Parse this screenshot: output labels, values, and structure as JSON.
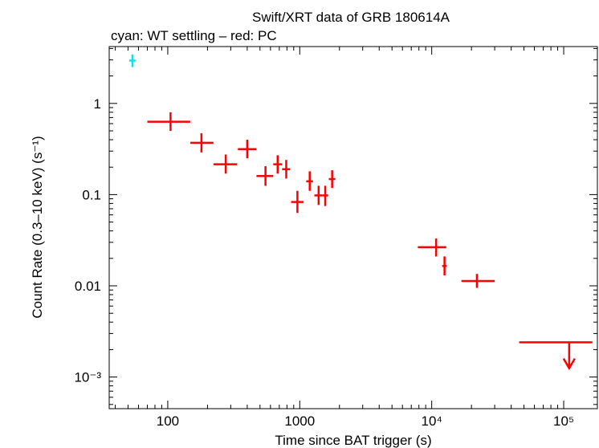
{
  "chart_data": {
    "type": "scatter",
    "title": "Swift/XRT data of GRB 180614A",
    "subtitle": "cyan: WT settling – red: PC",
    "xlabel": "Time since BAT trigger (s)",
    "ylabel": "Count Rate (0.3–10 keV) (s⁻¹)",
    "xscale": "log",
    "yscale": "log",
    "xlim": [
      36,
      180000
    ],
    "ylim": [
      0.00045,
      4.2
    ],
    "x_ticks": [
      {
        "value": 100,
        "label": "100"
      },
      {
        "value": 1000,
        "label": "1000"
      },
      {
        "value": 10000,
        "label": "10⁴"
      },
      {
        "value": 100000,
        "label": "10⁵"
      }
    ],
    "y_ticks": [
      {
        "value": 1,
        "label": "1"
      },
      {
        "value": 0.1,
        "label": "0.1"
      },
      {
        "value": 0.01,
        "label": "0.01"
      },
      {
        "value": 0.001,
        "label": "10⁻³"
      }
    ],
    "colors": {
      "wt": "#00e5ee",
      "pc": "#ff0000",
      "axis": "#000000"
    },
    "series": [
      {
        "name": "WT settling",
        "color": "#00e5ee",
        "points": [
          {
            "x": 54,
            "xlo": 51,
            "xhi": 57,
            "y": 2.95,
            "ylo": 2.5,
            "yhi": 3.45
          }
        ]
      },
      {
        "name": "PC",
        "color": "#ff0000",
        "points": [
          {
            "x": 105,
            "xlo": 70,
            "xhi": 148,
            "y": 0.63,
            "ylo": 0.5,
            "yhi": 0.8
          },
          {
            "x": 180,
            "xlo": 148,
            "xhi": 222,
            "y": 0.37,
            "ylo": 0.29,
            "yhi": 0.47
          },
          {
            "x": 275,
            "xlo": 222,
            "xhi": 335,
            "y": 0.215,
            "ylo": 0.17,
            "yhi": 0.275
          },
          {
            "x": 400,
            "xlo": 340,
            "xhi": 470,
            "y": 0.315,
            "ylo": 0.25,
            "yhi": 0.4
          },
          {
            "x": 550,
            "xlo": 470,
            "xhi": 630,
            "y": 0.16,
            "ylo": 0.125,
            "yhi": 0.205
          },
          {
            "x": 680,
            "xlo": 630,
            "xhi": 735,
            "y": 0.215,
            "ylo": 0.17,
            "yhi": 0.27
          },
          {
            "x": 790,
            "xlo": 735,
            "xhi": 845,
            "y": 0.19,
            "ylo": 0.15,
            "yhi": 0.24
          },
          {
            "x": 960,
            "xlo": 860,
            "xhi": 1070,
            "y": 0.083,
            "ylo": 0.063,
            "yhi": 0.11
          },
          {
            "x": 1190,
            "xlo": 1120,
            "xhi": 1260,
            "y": 0.14,
            "ylo": 0.11,
            "yhi": 0.18
          },
          {
            "x": 1390,
            "xlo": 1290,
            "xhi": 1490,
            "y": 0.098,
            "ylo": 0.077,
            "yhi": 0.125
          },
          {
            "x": 1560,
            "xlo": 1490,
            "xhi": 1640,
            "y": 0.098,
            "ylo": 0.075,
            "yhi": 0.125
          },
          {
            "x": 1760,
            "xlo": 1660,
            "xhi": 1860,
            "y": 0.148,
            "ylo": 0.118,
            "yhi": 0.185
          },
          {
            "x": 10800,
            "xlo": 7850,
            "xhi": 12900,
            "y": 0.0265,
            "ylo": 0.021,
            "yhi": 0.033
          },
          {
            "x": 12500,
            "xlo": 12000,
            "xhi": 13000,
            "y": 0.0165,
            "ylo": 0.013,
            "yhi": 0.021
          },
          {
            "x": 22000,
            "xlo": 16800,
            "xhi": 30000,
            "y": 0.0113,
            "ylo": 0.0095,
            "yhi": 0.0135
          }
        ],
        "upper_limits": [
          {
            "x": 110000,
            "xlo": 46000,
            "xhi": 165000,
            "y": 0.0024,
            "arrow_to": 0.00125
          }
        ]
      }
    ]
  }
}
